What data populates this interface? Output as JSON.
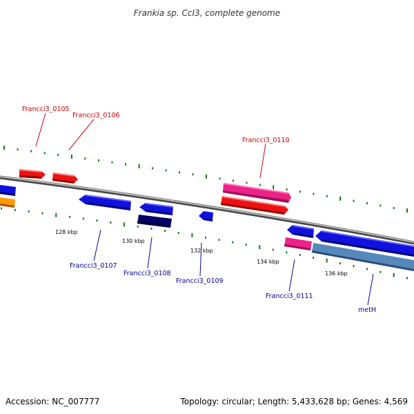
{
  "title": "Frankia sp. CcI3, complete genome",
  "footer": {
    "accession": "Accession: NC_007777",
    "topology": "Topology: circular; Length: 5,433,628 bp; Genes: 4,569"
  },
  "scale": {
    "ticks": [
      {
        "label": "128 kbp"
      },
      {
        "label": "130 kbp"
      },
      {
        "label": "132 kbp"
      },
      {
        "label": "134 kbp"
      },
      {
        "label": "136 kbp"
      }
    ]
  },
  "genes": [
    {
      "id": "Francci3_0105",
      "strand": "forward",
      "color": "#ee1111"
    },
    {
      "id": "Francci3_0106",
      "strand": "forward",
      "color": "#ee1111"
    },
    {
      "id": "Francci3_0107",
      "strand": "reverse",
      "color": "#1111dd"
    },
    {
      "id": "Francci3_0108",
      "strand": "reverse",
      "color": "#1111dd"
    },
    {
      "id": "Francci3_0109",
      "strand": "reverse",
      "color": "#1111dd"
    },
    {
      "id": "Francci3_0110",
      "strand": "forward",
      "color": "#ee2288"
    },
    {
      "id": "Francci3_0111",
      "strand": "reverse",
      "color": "#1111dd"
    },
    {
      "id": "metH",
      "strand": "reverse",
      "color": "#1111dd"
    }
  ],
  "colors": {
    "forward_label": "#cc0000",
    "reverse_label": "#000099",
    "backbone": "#888888",
    "tick": "#117711",
    "navy": "#000066",
    "steel": "#5588bb",
    "orange": "#ff9900",
    "pink": "#ee2288"
  }
}
